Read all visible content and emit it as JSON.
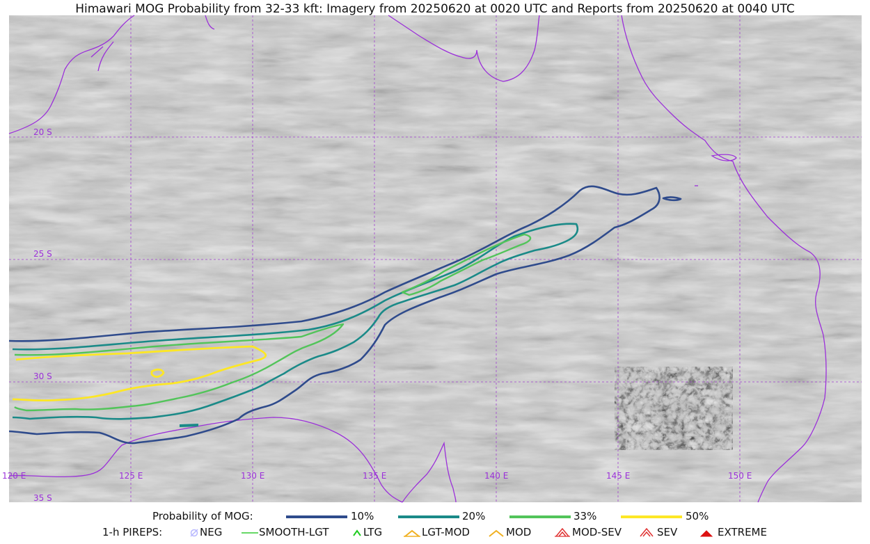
{
  "title": "Himawari MOG Probability from 32-33 kft: Imagery from 20250620 at 0020 UTC and Reports from 20250620 at 0040 UTC",
  "map": {
    "lat_labels": [
      "20 S",
      "25 S",
      "30 S",
      "35 S"
    ],
    "lon_labels": [
      "120 E",
      "125 E",
      "130 E",
      "135 E",
      "140 E",
      "145 E",
      "150 E"
    ],
    "gridline_color": "#a040d0",
    "coastline_color": "#9b30d9",
    "background": "grayscale satellite water-vapor imagery"
  },
  "legend": {
    "prob_title": "Probability of MOG:",
    "levels": [
      {
        "label": "10%",
        "color": "#2f4b8c"
      },
      {
        "label": "20%",
        "color": "#1a8a88"
      },
      {
        "label": "33%",
        "color": "#52c45a"
      },
      {
        "label": "50%",
        "color": "#fde725"
      }
    ],
    "pirep_title": "1-h PIREPS:",
    "pireps": [
      {
        "label": "NEG",
        "icon": "neg-icon",
        "color": "#b8b8ff"
      },
      {
        "label": "SMOOTH-LGT",
        "icon": "smooth-lgt-icon",
        "color": "#33cc33"
      },
      {
        "label": "LTG",
        "icon": "ltg-icon",
        "color": "#1fcc1f"
      },
      {
        "label": "LGT-MOD",
        "icon": "lgt-mod-icon",
        "color": "#f0b020"
      },
      {
        "label": "MOD",
        "icon": "mod-icon",
        "color": "#f0b020"
      },
      {
        "label": "MOD-SEV",
        "icon": "mod-sev-icon",
        "color": "#e03030"
      },
      {
        "label": "SEV",
        "icon": "sev-icon",
        "color": "#e03030"
      },
      {
        "label": "EXTREME",
        "icon": "extreme-icon",
        "color": "#dd1111"
      }
    ]
  }
}
